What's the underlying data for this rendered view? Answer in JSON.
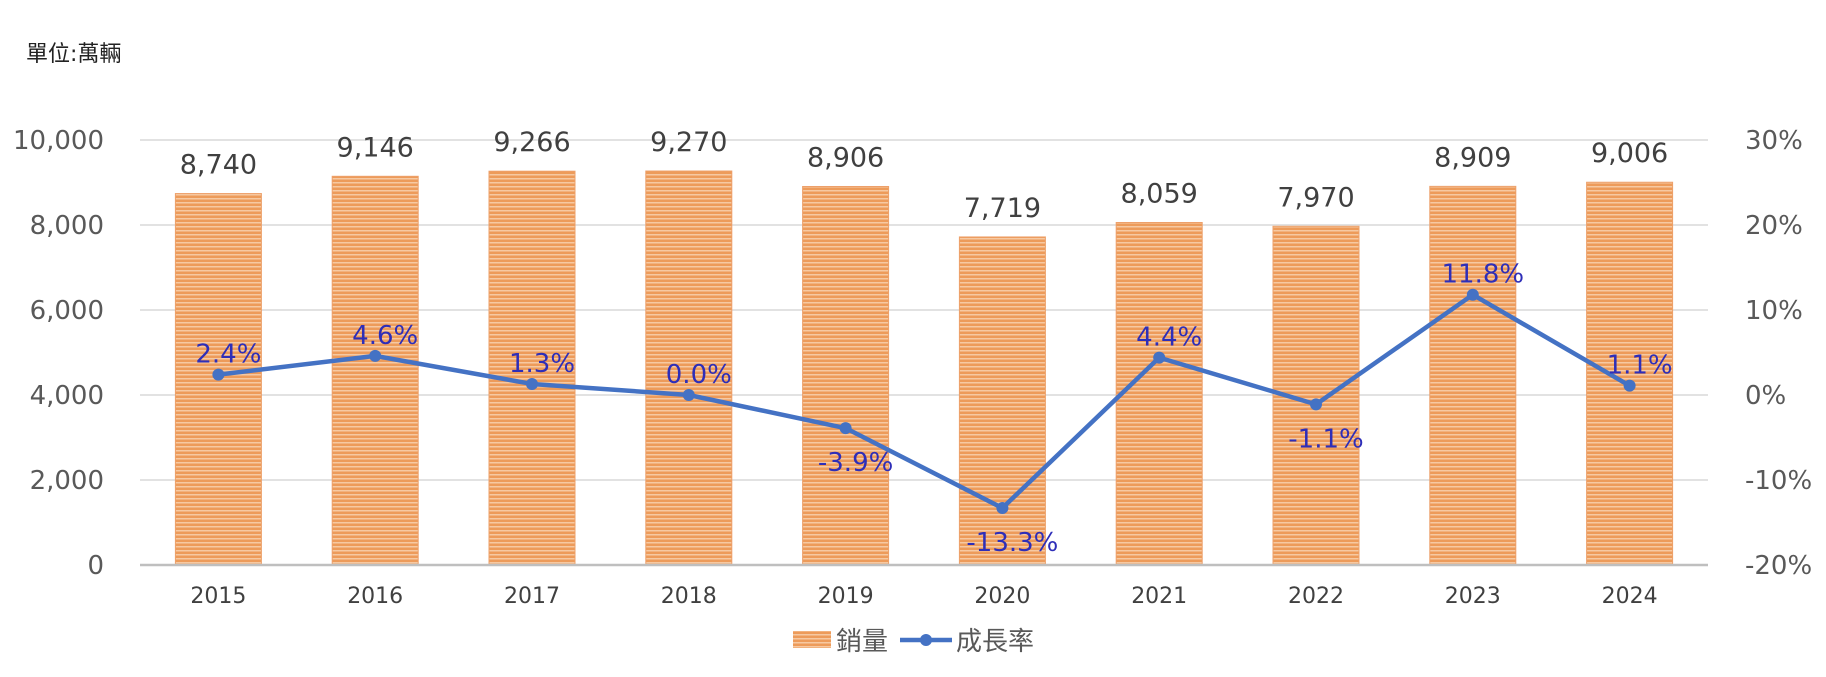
{
  "chart_data": {
    "type": "bar",
    "unit_label": "單位:萬輛",
    "categories": [
      "2015",
      "2016",
      "2017",
      "2018",
      "2019",
      "2020",
      "2021",
      "2022",
      "2023",
      "2024"
    ],
    "series": [
      {
        "name": "銷量",
        "type": "bar",
        "axis": "left",
        "values": [
          8740,
          9146,
          9266,
          9270,
          8906,
          7719,
          8059,
          7970,
          8909,
          9006
        ],
        "labels": [
          "8,740",
          "9,146",
          "9,266",
          "9,270",
          "8,906",
          "7,719",
          "8,059",
          "7,970",
          "8,909",
          "9,006"
        ]
      },
      {
        "name": "成長率",
        "type": "line",
        "axis": "right",
        "values": [
          2.4,
          4.6,
          1.3,
          0.0,
          -3.9,
          -13.3,
          4.4,
          -1.1,
          11.8,
          1.1
        ],
        "labels": [
          "2.4%",
          "4.6%",
          "1.3%",
          "0.0%",
          "-3.9%",
          "-13.3%",
          "4.4%",
          "-1.1%",
          "11.8%",
          "1.1%"
        ]
      }
    ],
    "y_left": {
      "ylim": [
        0,
        10000
      ],
      "ticks": [
        "0",
        "2,000",
        "4,000",
        "6,000",
        "8,000",
        "10,000"
      ]
    },
    "y_right": {
      "ylim": [
        -20,
        30
      ],
      "ticks": [
        "-20%",
        "-10%",
        "0%",
        "10%",
        "20%",
        "30%"
      ]
    },
    "grid": true,
    "legend_position": "bottom",
    "colors": {
      "bar": "#ED9B5A",
      "bar_stripe": "#F6C9A2",
      "line": "#4472C4",
      "pct_label": "#2E2EB8",
      "grid": "#D9D9D9",
      "axis": "#BFBFBF"
    }
  }
}
